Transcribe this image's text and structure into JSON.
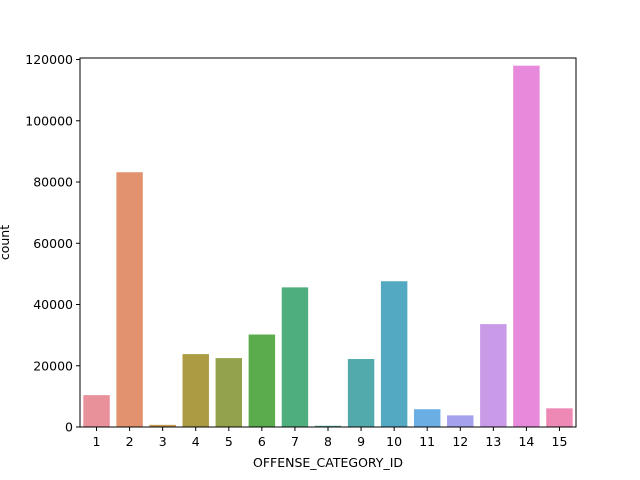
{
  "chart_data": {
    "type": "bar",
    "title": "",
    "xlabel": "OFFENSE_CATEGORY_ID",
    "ylabel": "count",
    "categories": [
      "1",
      "2",
      "3",
      "4",
      "5",
      "6",
      "7",
      "8",
      "9",
      "10",
      "11",
      "12",
      "13",
      "14",
      "15"
    ],
    "values": [
      10400,
      83200,
      700,
      23800,
      22500,
      30200,
      45600,
      400,
      22200,
      47600,
      5800,
      3800,
      33600,
      118000,
      6100
    ],
    "colors": [
      "#e8919a",
      "#e2926e",
      "#c49a4e",
      "#ad9b44",
      "#93a34c",
      "#5bac4c",
      "#4fae7d",
      "#51ad9d",
      "#52aaac",
      "#53a8c2",
      "#6aaee4",
      "#a4a2ec",
      "#c89ae8",
      "#e88adb",
      "#ee88b4"
    ],
    "ylim": [
      0,
      120500
    ],
    "yticks": [
      0,
      20000,
      40000,
      60000,
      80000,
      100000,
      120000
    ],
    "ytick_labels": [
      "0",
      "20000",
      "40000",
      "60000",
      "80000",
      "100000",
      "120000"
    ],
    "grid": false,
    "legend": "none"
  }
}
